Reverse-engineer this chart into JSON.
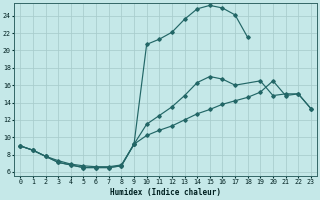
{
  "xlabel": "Humidex (Indice chaleur)",
  "bg_color": "#c5e8e8",
  "grid_color": "#a8cccc",
  "line_color": "#226666",
  "xlim": [
    -0.5,
    23.5
  ],
  "ylim": [
    5.5,
    25.5
  ],
  "xticks": [
    0,
    1,
    2,
    3,
    4,
    5,
    6,
    7,
    8,
    9,
    10,
    11,
    12,
    13,
    14,
    15,
    16,
    17,
    18,
    19,
    20,
    21,
    22,
    23
  ],
  "yticks": [
    6,
    8,
    10,
    12,
    14,
    16,
    18,
    20,
    22,
    24
  ],
  "curve_upper_x": [
    0,
    1,
    2,
    3,
    4,
    5,
    6,
    7,
    8,
    9,
    10,
    11,
    12,
    13,
    14,
    15,
    16,
    17,
    18
  ],
  "curve_upper_y": [
    9.0,
    8.5,
    7.8,
    7.3,
    6.9,
    6.7,
    6.6,
    6.6,
    6.8,
    9.2,
    20.7,
    21.3,
    22.1,
    23.6,
    24.8,
    25.2,
    24.9,
    24.1,
    21.5
  ],
  "curve_mid_x": [
    0,
    1,
    2,
    3,
    4,
    5,
    6,
    7,
    8,
    9,
    10,
    11,
    12,
    13,
    14,
    15,
    16,
    17,
    19,
    20,
    21,
    22,
    23
  ],
  "curve_mid_y": [
    9.0,
    8.5,
    7.8,
    7.1,
    6.8,
    6.5,
    6.5,
    6.5,
    6.7,
    9.2,
    11.5,
    12.5,
    13.5,
    14.8,
    16.3,
    17.0,
    16.7,
    16.0,
    16.5,
    14.8,
    15.0,
    15.0,
    13.3
  ],
  "curve_low_x": [
    0,
    1,
    2,
    3,
    4,
    5,
    6,
    7,
    8,
    9,
    10,
    11,
    12,
    13,
    14,
    15,
    16,
    17,
    18,
    19,
    20,
    21,
    22,
    23
  ],
  "curve_low_y": [
    9.0,
    8.5,
    7.8,
    7.1,
    6.8,
    6.5,
    6.5,
    6.5,
    6.7,
    9.2,
    10.2,
    10.8,
    11.3,
    12.0,
    12.7,
    13.2,
    13.8,
    14.2,
    14.6,
    15.2,
    16.5,
    14.8,
    15.0,
    13.3
  ],
  "markersize": 1.8,
  "linewidth": 0.85
}
